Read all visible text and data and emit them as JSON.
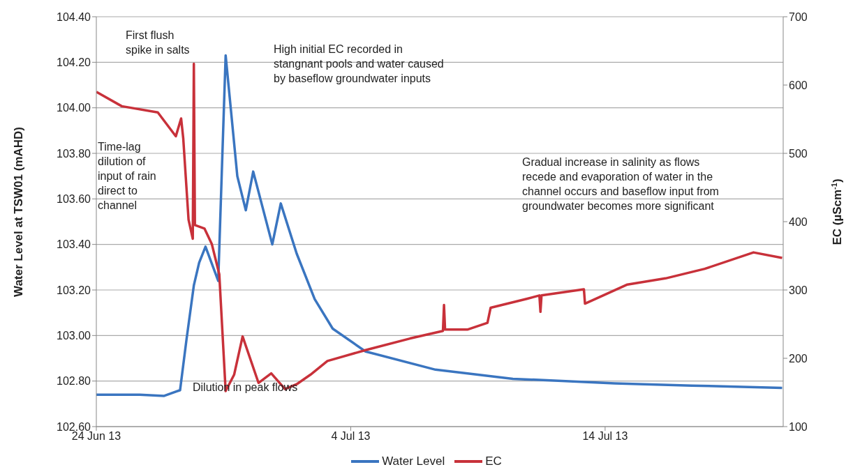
{
  "chart_data": {
    "type": "line",
    "ylabel": "Water Level at TSW01 (mAHD)",
    "y2label": "EC (µScm$^{-1}$)",
    "xlim": [
      "2013-06-24",
      "2013-07-21"
    ],
    "xticks": [
      {
        "value": "2013-06-24",
        "label": "24 Jun 13"
      },
      {
        "value": "2013-07-04",
        "label": "4 Jul 13"
      },
      {
        "value": "2013-07-14",
        "label": "14 Jul 13"
      }
    ],
    "ylim": [
      102.6,
      104.4
    ],
    "yticks": [
      {
        "value": 102.6,
        "label": "102.60"
      },
      {
        "value": 102.8,
        "label": "102.80"
      },
      {
        "value": 103,
        "label": "103.00"
      },
      {
        "value": 103.2,
        "label": "103.20"
      },
      {
        "value": 103.4,
        "label": "103.40"
      },
      {
        "value": 103.6,
        "label": "103.60"
      },
      {
        "value": 103.8,
        "label": "103.80"
      },
      {
        "value": 104,
        "label": "104.00"
      },
      {
        "value": 104.2,
        "label": "104.20"
      },
      {
        "value": 104.4,
        "label": "104.40"
      }
    ],
    "y2lim": [
      100,
      700
    ],
    "y2ticks": [
      100,
      200,
      300,
      400,
      500,
      600,
      700
    ],
    "grid": "y",
    "legend": "bottom",
    "marker": "none",
    "line_style": "solid",
    "series": [
      {
        "name": "Water Level",
        "color": "#3a75c0",
        "x": [
          "2013-06-24T00:00",
          "2013-06-25T17:00",
          "2013-06-26T16:00",
          "2013-06-27T07:00",
          "2013-06-27T13:00",
          "2013-06-27T20:00",
          "2013-06-28T01:00",
          "2013-06-28T07:00",
          "2013-06-28T19:00",
          "2013-06-29T02:00",
          "2013-06-29T13:00",
          "2013-06-29T21:00",
          "2013-06-30T04:00",
          "2013-06-30T22:00",
          "2013-07-01T06:00",
          "2013-07-01T21:00",
          "2013-07-02T14:00",
          "2013-07-03T07:00",
          "2013-07-04T14:00",
          "2013-07-07T08:00",
          "2013-07-10T09:00",
          "2013-07-14T09:00",
          "2013-07-17T10:00",
          "2013-07-20T23:00"
        ],
        "values": [
          102.74,
          102.74,
          102.735,
          102.76,
          102.98,
          103.22,
          103.32,
          103.39,
          103.24,
          104.23,
          103.7,
          103.55,
          103.72,
          103.4,
          103.58,
          103.36,
          103.16,
          103.03,
          102.93,
          102.85,
          102.81,
          102.79,
          102.78,
          102.77
        ]
      },
      {
        "name": "EC",
        "color": "#c8313a",
        "axis": "y2",
        "x": [
          "2013-06-24T00:00",
          "2013-06-25T00:00",
          "2013-06-26T10:00",
          "2013-06-27T03:00",
          "2013-06-27T08:00",
          "2013-06-27T10:00",
          "2013-06-27T15:00",
          "2013-06-27T19:00",
          "2013-06-27T20:00",
          "2013-06-27T21:00",
          "2013-06-28T06:00",
          "2013-06-28T13:00",
          "2013-06-28T20:00",
          "2013-06-29T02:00",
          "2013-06-29T10:00",
          "2013-06-29T18:00",
          "2013-06-30T09:00",
          "2013-06-30T21:00",
          "2013-07-01T10:00",
          "2013-07-01T21:00",
          "2013-07-02T10:00",
          "2013-07-03T02:00",
          "2013-07-04T14:00",
          "2013-07-06T08:00",
          "2013-07-07T15:00",
          "2013-07-07T16:00",
          "2013-07-07T17:00",
          "2013-07-08T14:00",
          "2013-07-09T09:00",
          "2013-07-09T12:00",
          "2013-07-10T22:00",
          "2013-07-11T10:00",
          "2013-07-11T11:00",
          "2013-07-11T12:00",
          "2013-07-13T04:00",
          "2013-07-13T05:00",
          "2013-07-14T21:00",
          "2013-07-16T09:00",
          "2013-07-17T22:00",
          "2013-07-19T20:00",
          "2013-07-20T23:00"
        ],
        "values": [
          590,
          569,
          560,
          525,
          551,
          522,
          403,
          375,
          631,
          395,
          390,
          367,
          323,
          152,
          176,
          232,
          164,
          178,
          155,
          162,
          176,
          196,
          212,
          229,
          240,
          278,
          242,
          242,
          252,
          274,
          287,
          292,
          268,
          292,
          301,
          280,
          308,
          317,
          331,
          355,
          347
        ]
      }
    ],
    "annotations": [
      "First flush\nspike in salts",
      "High initial EC recorded in\nstangnant pools and water caused\nby baseflow groundwater inputs",
      "Time-lag\ndilution of\ninput of rain\ndirect to\nchannel",
      "Dilution in peak flows",
      "Gradual increase in salinity as flows\nrecede and evaporation of water in the\nchannel occurs and baseflow input from\ngroundwater becomes more significant"
    ]
  }
}
